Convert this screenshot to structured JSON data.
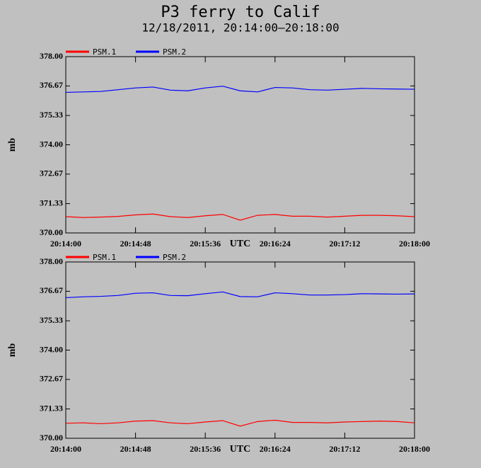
{
  "title": "P3 ferry to Calif",
  "subtitle": "12/18/2011, 20:14:00–20:18:00",
  "chart_data": [
    {
      "type": "line",
      "ylabel": "mb",
      "xlabel": "UTC",
      "x": [
        "20:14:00",
        "20:14:12",
        "20:14:24",
        "20:14:36",
        "20:14:48",
        "20:15:00",
        "20:15:12",
        "20:15:24",
        "20:15:36",
        "20:15:48",
        "20:16:00",
        "20:16:12",
        "20:16:24",
        "20:16:36",
        "20:16:48",
        "20:17:00",
        "20:17:12",
        "20:17:24",
        "20:17:36",
        "20:17:48",
        "20:18:00"
      ],
      "series": [
        {
          "name": "PSM.1",
          "color": "#ff0000",
          "values": [
            370.74,
            370.7,
            370.72,
            370.75,
            370.82,
            370.86,
            370.74,
            370.7,
            370.78,
            370.84,
            370.58,
            370.8,
            370.84,
            370.76,
            370.76,
            370.72,
            370.76,
            370.8,
            370.8,
            370.78,
            370.74
          ]
        },
        {
          "name": "PSM.2",
          "color": "#0000ff",
          "values": [
            376.38,
            376.4,
            376.42,
            376.5,
            376.58,
            376.62,
            376.48,
            376.45,
            376.58,
            376.66,
            376.45,
            376.4,
            376.6,
            376.58,
            376.5,
            376.48,
            376.52,
            376.56,
            376.54,
            376.53,
            376.52
          ]
        }
      ],
      "xlim": [
        "20:14:00",
        "20:18:00"
      ],
      "xticks": [
        "20:14:00",
        "20:14:48",
        "20:15:36",
        "20:16:24",
        "20:17:12",
        "20:18:00"
      ],
      "ylim": [
        370,
        378
      ],
      "yticks": [
        {
          "value": 370,
          "label": "370.00"
        },
        371.33,
        372.67,
        {
          "value": 374,
          "label": "374.00"
        },
        375.33,
        376.67,
        {
          "value": 378,
          "label": "378.00"
        }
      ]
    },
    {
      "type": "line",
      "ylabel": "mb",
      "xlabel": "UTC",
      "x": [
        "20:14:00",
        "20:14:12",
        "20:14:24",
        "20:14:36",
        "20:14:48",
        "20:15:00",
        "20:15:12",
        "20:15:24",
        "20:15:36",
        "20:15:48",
        "20:16:00",
        "20:16:12",
        "20:16:24",
        "20:16:36",
        "20:16:48",
        "20:17:00",
        "20:17:12",
        "20:17:24",
        "20:17:36",
        "20:17:48",
        "20:18:00"
      ],
      "series": [
        {
          "name": "PSM.1",
          "color": "#ff0000",
          "values": [
            370.68,
            370.7,
            370.66,
            370.7,
            370.78,
            370.8,
            370.7,
            370.66,
            370.74,
            370.8,
            370.55,
            370.76,
            370.82,
            370.72,
            370.72,
            370.7,
            370.74,
            370.76,
            370.78,
            370.76,
            370.7
          ]
        },
        {
          "name": "PSM.2",
          "color": "#0000ff",
          "values": [
            376.38,
            376.42,
            376.44,
            376.48,
            376.58,
            376.6,
            376.48,
            376.47,
            376.56,
            376.64,
            376.43,
            376.42,
            376.6,
            376.56,
            376.5,
            376.5,
            376.52,
            376.56,
            376.55,
            376.54,
            376.55
          ]
        }
      ],
      "xlim": [
        "20:14:00",
        "20:18:00"
      ],
      "xticks": [
        "20:14:00",
        "20:14:48",
        "20:15:36",
        "20:16:24",
        "20:17:12",
        "20:18:00"
      ],
      "ylim": [
        370,
        378
      ],
      "yticks": [
        {
          "value": 370,
          "label": "370.00"
        },
        371.33,
        372.67,
        {
          "value": 374,
          "label": "374.00"
        },
        375.33,
        376.67,
        {
          "value": 378,
          "label": "378.00"
        }
      ]
    }
  ]
}
